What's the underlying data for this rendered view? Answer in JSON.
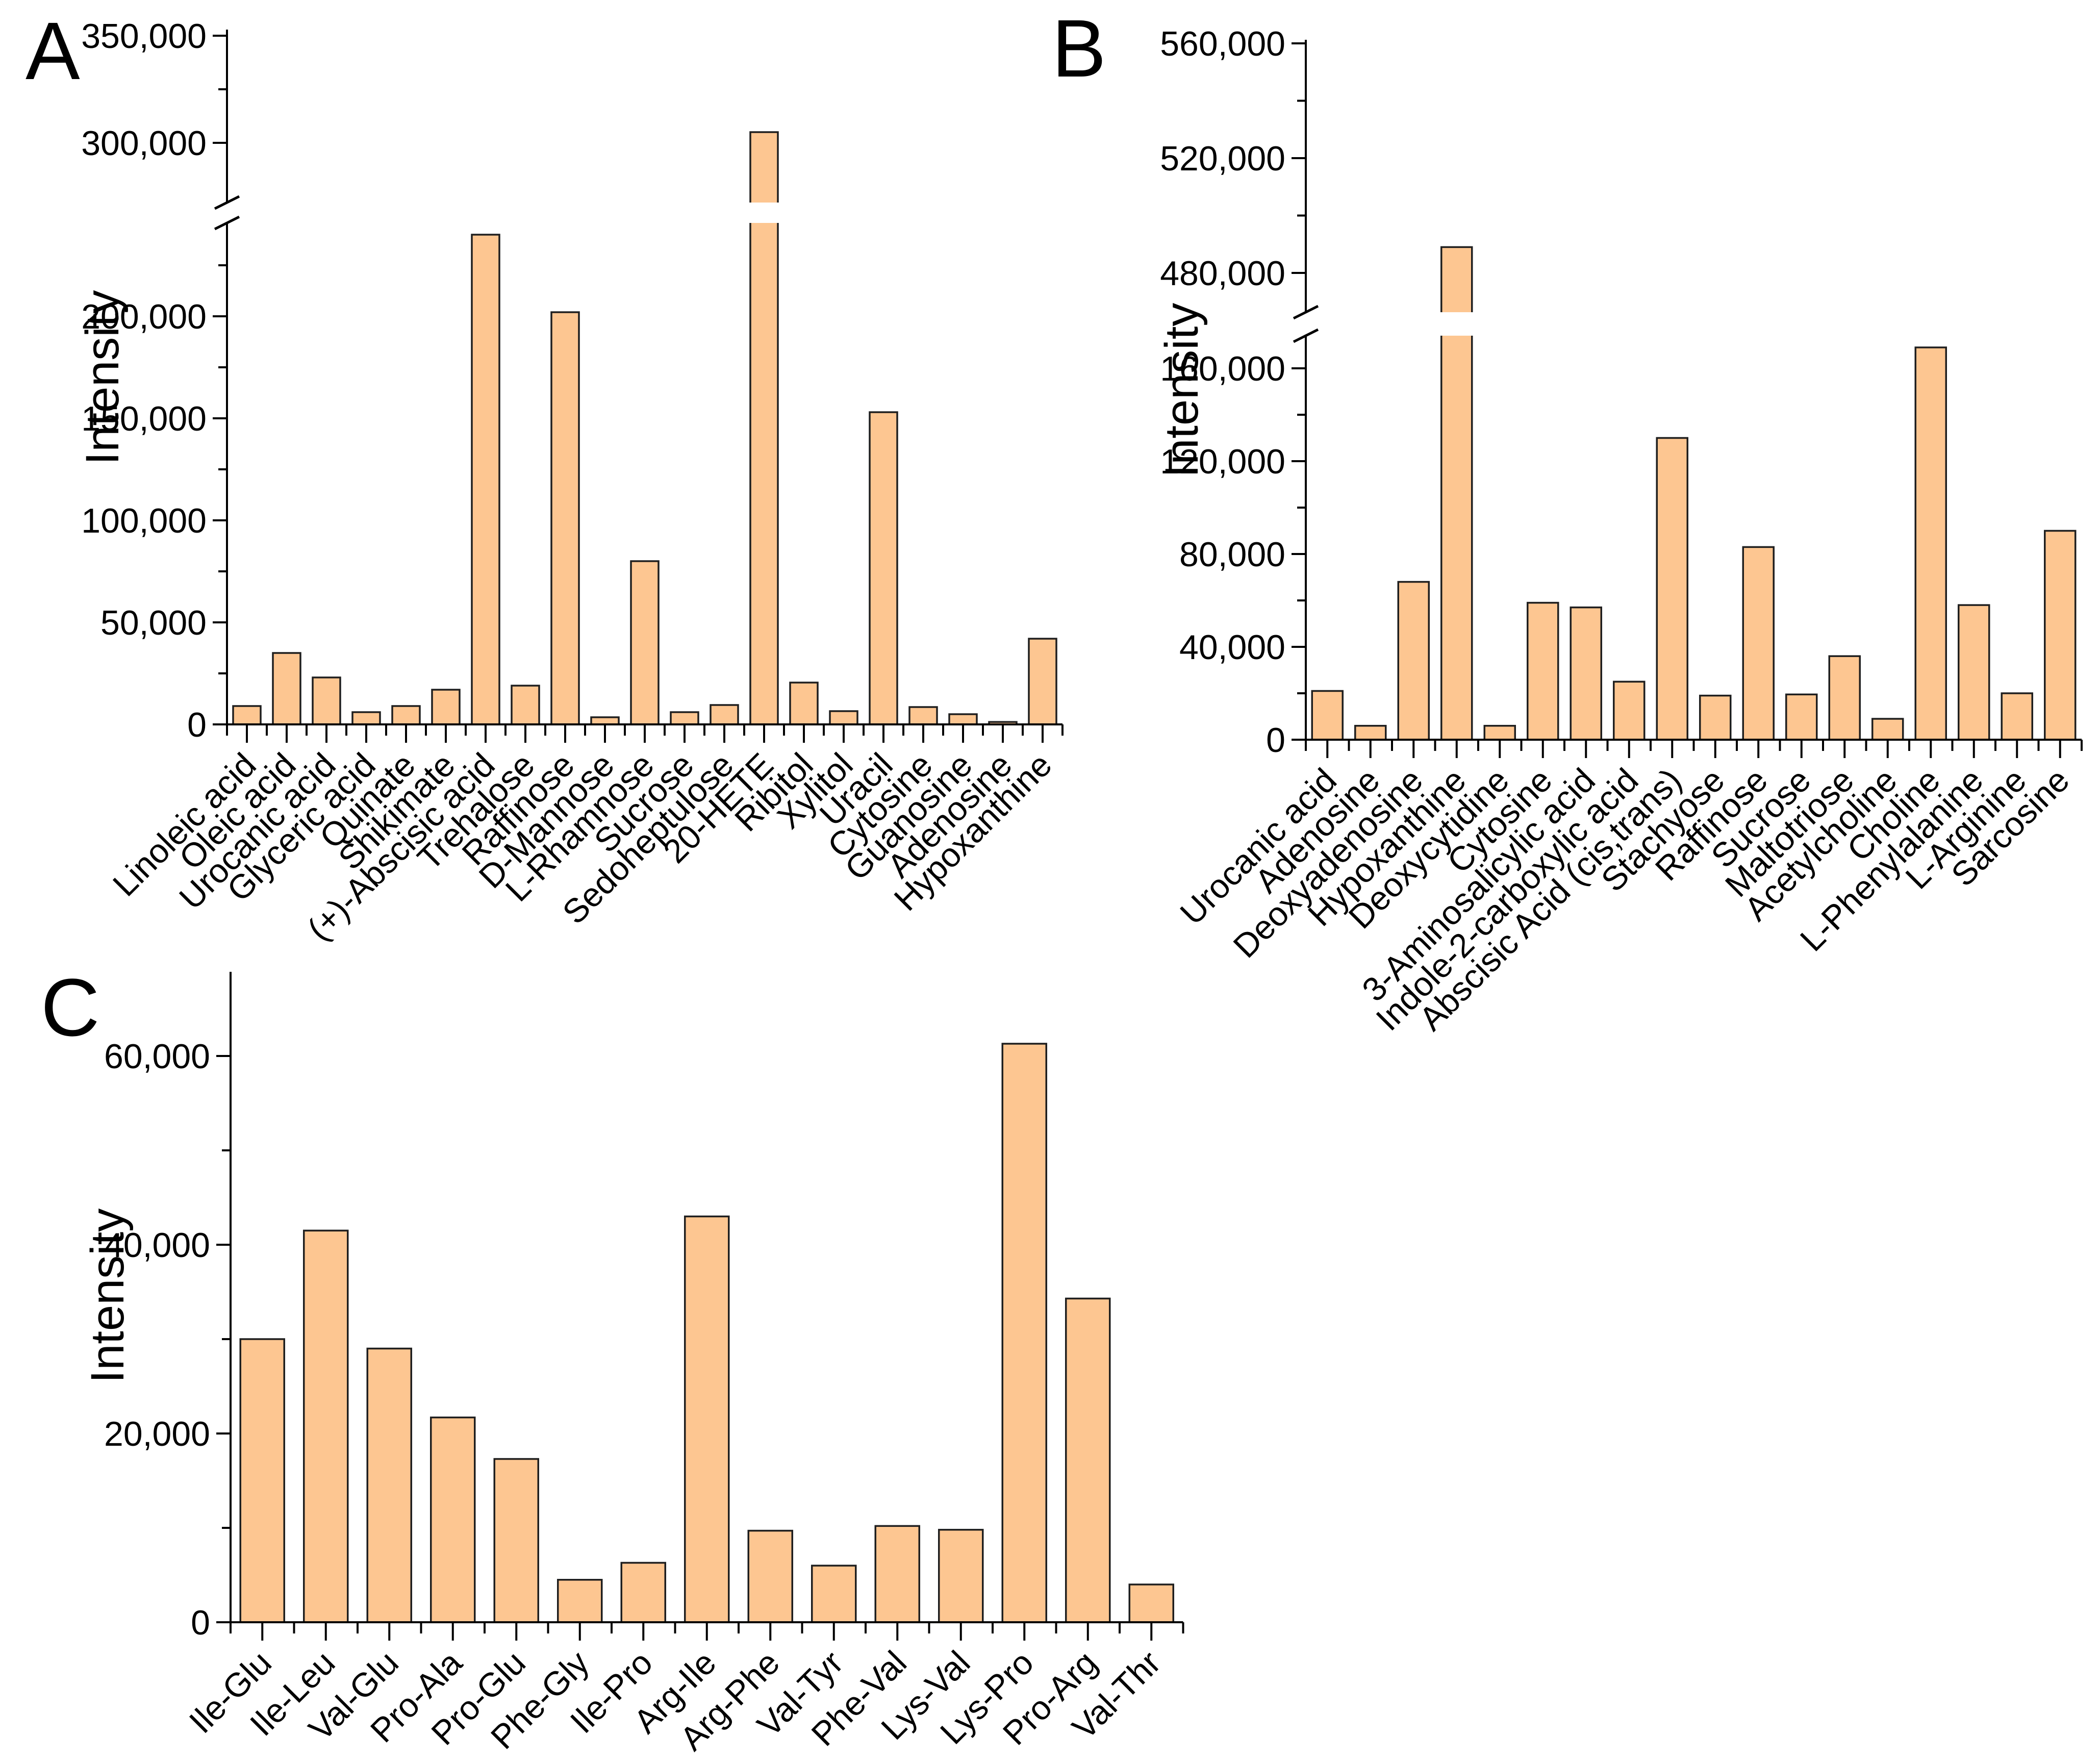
{
  "figure": {
    "background": "#ffffff"
  },
  "colors": {
    "bar_fill": "#fdc691",
    "bar_stroke": "#1f1f1f",
    "axis": "#000000",
    "text": "#000000"
  },
  "chart_data": [
    {
      "type": "bar",
      "panel_label": "A",
      "ylabel": "Intensity",
      "categories": [
        "Linoleic acid",
        "Oleic acid",
        "Urocanic acid",
        "Glyceric acid",
        "Quinate",
        "Shikimate",
        "(+)-Abscisic acid",
        "Trehalose",
        "Raffinose",
        "D-Mannose",
        "L-Rhamnose",
        "Sucrose",
        "Sedoheptulose",
        "20-HETE",
        "Ribitol",
        "Xylitol",
        "Uracil",
        "Cytosine",
        "Guanosine",
        "Adenosine",
        "Hypoxanthine"
      ],
      "values": [
        9000,
        35000,
        23000,
        6000,
        9000,
        17000,
        240000,
        19000,
        202000,
        3500,
        80000,
        6000,
        9500,
        305000,
        20500,
        6500,
        153000,
        8500,
        5000,
        1200,
        42000
      ],
      "ylim": [
        0,
        350000
      ],
      "axis_break": {
        "lower_max": 250000,
        "upper_min": 280000
      },
      "yticks_major": [
        0,
        50000,
        100000,
        150000,
        200000,
        300000,
        350000
      ],
      "yticks_minor": [
        25000,
        75000,
        125000,
        175000,
        225000,
        325000
      ],
      "grid": false,
      "legend": null
    },
    {
      "type": "bar",
      "panel_label": "B",
      "ylabel": "Intensity",
      "categories": [
        "Urocanic acid",
        "Adenosine",
        "Deoxyadenosine",
        "Hypoxanthine",
        "Deoxycytidine",
        "Cytosine",
        "3-Aminosalicylic acid",
        "Indole-2-carboxylic acid",
        "Abscisic Acid (cis,trans)",
        "Stachyose",
        "Raffinose",
        "Sucrose",
        "Maltotriose",
        "Acetylcholine",
        "Choline",
        "L-Phenylalanine",
        "L-Arginine",
        "Sarcosine"
      ],
      "values": [
        21000,
        6000,
        68000,
        489000,
        6000,
        59000,
        57000,
        25000,
        130000,
        19000,
        83000,
        19500,
        36000,
        9000,
        169000,
        58000,
        20000,
        90000
      ],
      "ylim": [
        0,
        560000
      ],
      "axis_break": {
        "lower_max": 172000,
        "upper_min": 470000
      },
      "yticks_major": [
        0,
        40000,
        80000,
        120000,
        160000,
        480000,
        520000,
        560000
      ],
      "yticks_minor": [
        20000,
        60000,
        100000,
        140000,
        500000,
        540000
      ],
      "grid": false,
      "legend": null
    },
    {
      "type": "bar",
      "panel_label": "C",
      "ylabel": "Intensity",
      "categories": [
        "Ile-Glu",
        "Ile-Leu",
        "Val-Glu",
        "Pro-Ala",
        "Pro-Glu",
        "Phe-Gly",
        "Ile-Pro",
        "Arg-Ile",
        "Arg-Phe",
        "Val-Tyr",
        "Phe-Val",
        "Lys-Val",
        "Lys-Pro",
        "Pro-Arg",
        "Val-Thr"
      ],
      "values": [
        30000,
        41500,
        29000,
        21700,
        17300,
        4500,
        6300,
        43000,
        9700,
        6000,
        10200,
        9800,
        61300,
        34300,
        4000
      ],
      "ylim": [
        0,
        70000
      ],
      "axis_break": null,
      "yticks_major": [
        0,
        20000,
        40000,
        60000
      ],
      "yticks_minor": [
        10000,
        30000,
        50000
      ],
      "grid": false,
      "legend": null
    }
  ]
}
